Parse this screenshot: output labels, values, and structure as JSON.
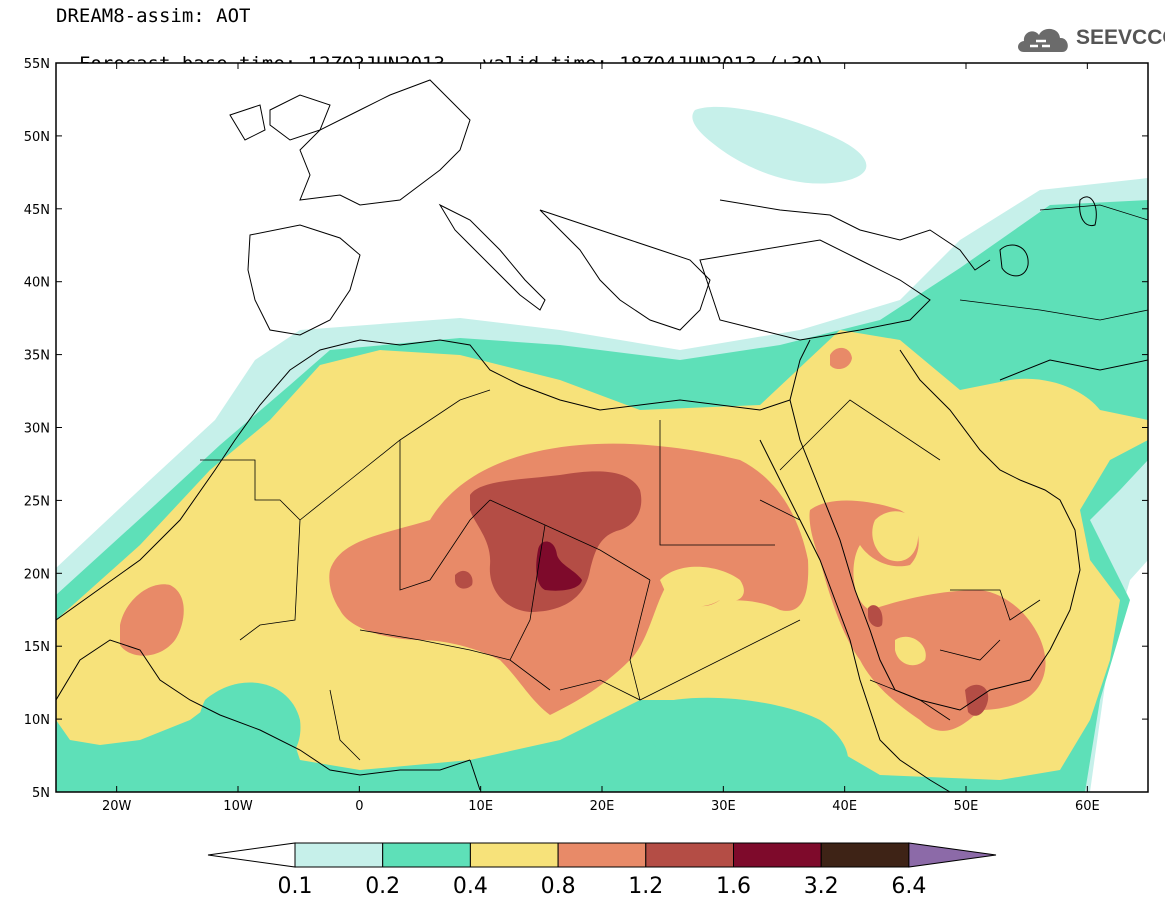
{
  "header": {
    "title": "DREAM8-assim: AOT",
    "base_time": "Forecast base time: 12Z03JUN2013",
    "valid_time": "valid time: 18Z04JUN2013 (+30)"
  },
  "logo": {
    "text": "SEEVCCC",
    "icon": "cloud-icon"
  },
  "map": {
    "lon_range": [
      -25,
      65
    ],
    "lat_range": [
      5,
      55
    ],
    "lon_labels": [
      "20W",
      "10W",
      "0",
      "10E",
      "20E",
      "30E",
      "40E",
      "50E",
      "60E"
    ],
    "lat_labels": [
      "55N",
      "50N",
      "45N",
      "40N",
      "35N",
      "30N",
      "25N",
      "20N",
      "15N",
      "10N",
      "5N"
    ]
  },
  "colorbar": {
    "labels": [
      "0.1",
      "0.2",
      "0.4",
      "0.8",
      "1.2",
      "1.6",
      "3.2",
      "6.4"
    ],
    "colors": [
      "#ffffff",
      "#c6f0ea",
      "#5ee0b8",
      "#f7e27a",
      "#e88a68",
      "#b44d45",
      "#7e0a2b",
      "#3e2316",
      "#8c6aa8"
    ]
  }
}
